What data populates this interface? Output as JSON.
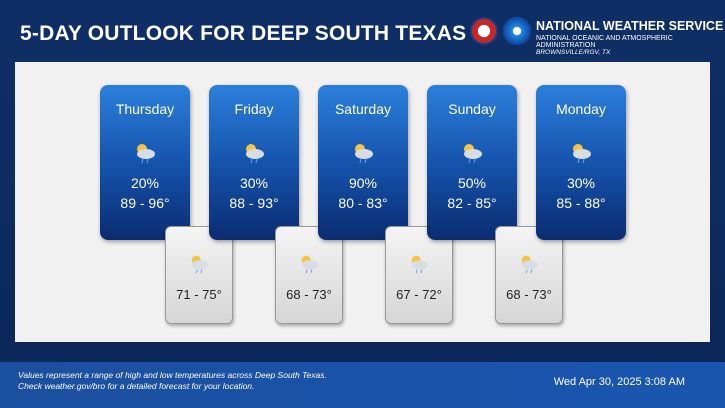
{
  "header": {
    "title": "5-DAY OUTLOOK FOR DEEP SOUTH TEXAS",
    "agency": "NATIONAL WEATHER SERVICE",
    "subagency": "NATIONAL OCEANIC AND ATMOSPHERIC ADMINISTRATION",
    "office": "BROWNSVILLE/RGV, TX"
  },
  "days": [
    {
      "name": "Thursday",
      "pop": "20%",
      "temp": "89 - 96°",
      "night": "71 - 75°"
    },
    {
      "name": "Friday",
      "pop": "30%",
      "temp": "88 - 93°",
      "night": "68 - 73°"
    },
    {
      "name": "Saturday",
      "pop": "90%",
      "temp": "80 - 83°",
      "night": "67 - 72°"
    },
    {
      "name": "Sunday",
      "pop": "50%",
      "temp": "82 - 85°",
      "night": "68 - 73°"
    },
    {
      "name": "Monday",
      "pop": "30%",
      "temp": "85 - 88°"
    }
  ],
  "footer": {
    "note_1": "Values represent a range of high and low temperatures across Deep South Texas.",
    "note_2": "Check weather.gov/bro for a detailed forecast for your location.",
    "timestamp": "Wed Apr 30, 2025 3:08 AM"
  }
}
